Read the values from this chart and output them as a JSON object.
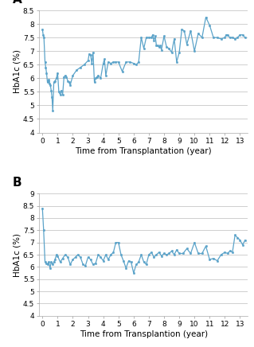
{
  "panel_A": {
    "label": "A",
    "xlabel": "Time from Transplantation (year)",
    "ylabel": "HbA1c (%)",
    "ylim": [
      4,
      8.5
    ],
    "xlim": [
      -0.2,
      13.5
    ],
    "yticks": [
      4,
      4.5,
      5,
      5.5,
      6,
      6.5,
      7,
      7.5,
      8,
      8.5
    ],
    "ytick_labels": [
      "4",
      "4.5",
      "5",
      "5.5",
      "6",
      "6.5",
      "7",
      "7.5",
      "8",
      "8.5"
    ],
    "xticks": [
      0,
      1,
      2,
      3,
      4,
      5,
      6,
      7,
      8,
      9,
      10,
      11,
      12,
      13
    ],
    "x": [
      0.0,
      0.05,
      0.1,
      0.17,
      0.22,
      0.27,
      0.33,
      0.38,
      0.42,
      0.47,
      0.52,
      0.58,
      0.63,
      0.68,
      0.75,
      0.83,
      0.92,
      1.0,
      1.08,
      1.17,
      1.25,
      1.33,
      1.42,
      1.5,
      1.58,
      1.67,
      1.75,
      1.83,
      2.0,
      2.25,
      2.5,
      2.75,
      3.0,
      3.08,
      3.17,
      3.25,
      3.33,
      3.42,
      3.5,
      3.58,
      3.67,
      3.83,
      4.0,
      4.08,
      4.17,
      4.33,
      4.5,
      4.67,
      4.83,
      5.0,
      5.25,
      5.5,
      5.75,
      6.0,
      6.17,
      6.33,
      6.5,
      6.67,
      6.83,
      7.0,
      7.17,
      7.25,
      7.33,
      7.42,
      7.5,
      7.58,
      7.67,
      7.75,
      7.83,
      8.0,
      8.17,
      8.33,
      8.5,
      8.67,
      8.83,
      9.0,
      9.17,
      9.33,
      9.5,
      9.75,
      10.0,
      10.25,
      10.5,
      10.75,
      11.0,
      11.25,
      11.5,
      11.75,
      12.0,
      12.08,
      12.17,
      12.33,
      12.5,
      12.67,
      12.83,
      13.0,
      13.17,
      13.33
    ],
    "y": [
      7.8,
      7.6,
      7.5,
      6.6,
      6.4,
      6.2,
      5.85,
      5.9,
      5.95,
      5.8,
      5.75,
      5.55,
      5.3,
      4.8,
      5.85,
      5.9,
      6.0,
      6.2,
      5.5,
      5.4,
      5.55,
      5.4,
      6.05,
      6.1,
      6.05,
      5.9,
      5.85,
      5.75,
      6.1,
      6.3,
      6.4,
      6.5,
      6.65,
      6.9,
      6.85,
      6.55,
      6.95,
      5.85,
      6.0,
      6.05,
      6.1,
      6.0,
      6.55,
      6.7,
      6.1,
      6.6,
      6.55,
      6.6,
      6.6,
      6.6,
      6.25,
      6.6,
      6.6,
      6.55,
      6.5,
      6.6,
      7.5,
      7.1,
      7.5,
      7.5,
      7.5,
      7.6,
      7.4,
      7.55,
      7.2,
      7.2,
      7.15,
      7.2,
      7.05,
      7.55,
      7.15,
      7.1,
      6.95,
      7.45,
      6.6,
      6.95,
      7.8,
      7.75,
      7.25,
      7.75,
      7.0,
      7.65,
      7.5,
      8.25,
      7.95,
      7.5,
      7.5,
      7.45,
      7.5,
      7.6,
      7.6,
      7.5,
      7.5,
      7.45,
      7.5,
      7.6,
      7.6,
      7.5
    ]
  },
  "panel_B": {
    "label": "B",
    "xlabel": "Time from Transplantion (year)",
    "ylabel": "HbA1c (%)",
    "ylim": [
      4,
      9
    ],
    "xlim": [
      -0.2,
      13.5
    ],
    "yticks": [
      4,
      4.5,
      5,
      5.5,
      6,
      6.5,
      7,
      7.5,
      8,
      8.5,
      9
    ],
    "ytick_labels": [
      "4",
      "4.5",
      "5",
      "5.5",
      "6",
      "6.5",
      "7",
      "7.5",
      "8",
      "8.5",
      "9"
    ],
    "xticks": [
      0,
      1,
      2,
      3,
      4,
      5,
      6,
      7,
      8,
      9,
      10,
      11,
      12,
      13
    ],
    "x": [
      0.0,
      0.08,
      0.17,
      0.25,
      0.33,
      0.42,
      0.5,
      0.58,
      0.67,
      0.75,
      0.83,
      0.92,
      1.0,
      1.17,
      1.33,
      1.5,
      1.67,
      1.83,
      2.0,
      2.17,
      2.33,
      2.5,
      2.67,
      2.83,
      3.0,
      3.17,
      3.33,
      3.5,
      3.67,
      3.83,
      4.0,
      4.17,
      4.33,
      4.5,
      4.67,
      4.83,
      5.0,
      5.17,
      5.33,
      5.5,
      5.67,
      5.83,
      6.0,
      6.17,
      6.33,
      6.5,
      6.67,
      6.83,
      7.0,
      7.17,
      7.33,
      7.5,
      7.67,
      7.83,
      8.0,
      8.17,
      8.33,
      8.5,
      8.67,
      8.83,
      9.0,
      9.25,
      9.5,
      9.75,
      10.0,
      10.25,
      10.5,
      10.75,
      11.0,
      11.25,
      11.5,
      11.75,
      12.0,
      12.17,
      12.33,
      12.5,
      12.67,
      12.83,
      13.0,
      13.17,
      13.33
    ],
    "y": [
      8.4,
      7.5,
      6.2,
      6.15,
      6.1,
      6.2,
      5.95,
      6.2,
      6.1,
      6.2,
      6.3,
      6.5,
      6.45,
      6.2,
      6.35,
      6.5,
      6.4,
      6.1,
      6.3,
      6.4,
      6.5,
      6.4,
      6.1,
      6.05,
      6.4,
      6.3,
      6.1,
      6.15,
      6.5,
      6.4,
      6.25,
      6.5,
      6.3,
      6.5,
      6.6,
      7.0,
      7.0,
      6.5,
      6.25,
      5.95,
      6.25,
      6.2,
      5.75,
      6.1,
      6.2,
      6.5,
      6.2,
      6.1,
      6.5,
      6.6,
      6.4,
      6.5,
      6.6,
      6.45,
      6.55,
      6.5,
      6.55,
      6.65,
      6.5,
      6.7,
      6.55,
      6.55,
      6.75,
      6.55,
      7.0,
      6.55,
      6.55,
      6.85,
      6.3,
      6.35,
      6.25,
      6.5,
      6.6,
      6.55,
      6.65,
      6.6,
      7.3,
      7.2,
      7.1,
      6.9,
      7.1
    ]
  },
  "line_color": "#5ba3c9",
  "marker": "o",
  "markersize": 1.8,
  "linewidth": 0.9,
  "background_color": "#ffffff",
  "grid_color": "#c8c8c8",
  "tick_fontsize": 6.5,
  "label_fontsize": 7.5,
  "panel_label_fontsize": 11
}
